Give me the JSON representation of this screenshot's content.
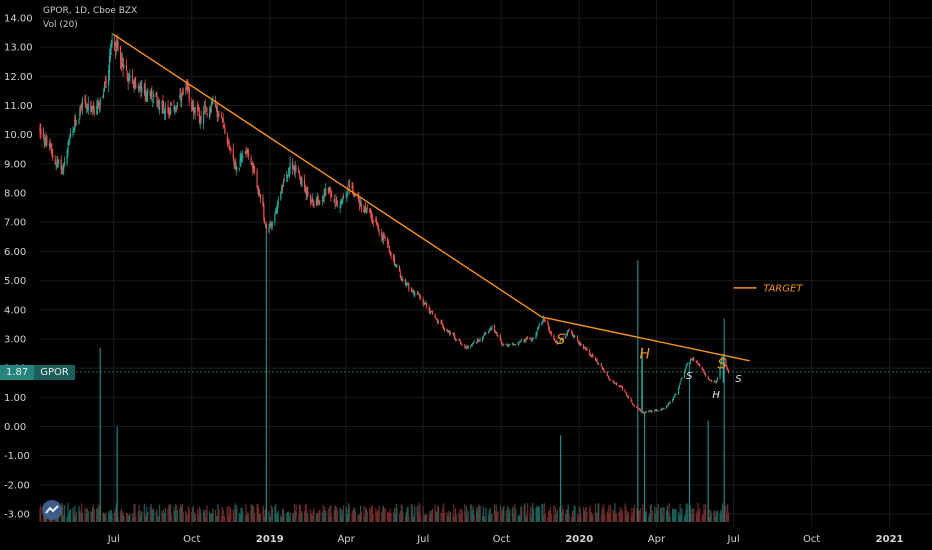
{
  "legend": {
    "title": "GPOR, 1D, Cboe BZX",
    "volume": "Vol (20)"
  },
  "price_tag": {
    "value": "1.87",
    "symbol": "GPOR"
  },
  "colors": {
    "background": "#000000",
    "grid": "#1a1a1a",
    "up": "#26a69a",
    "down": "#ef5350",
    "trendline": "#f7931a",
    "axis_text": "#d4d4d4",
    "price_line": "#26a69a"
  },
  "chart_data": {
    "type": "candlestick",
    "symbol": "GPOR",
    "interval": "1D",
    "exchange": "Cboe BZX",
    "y_ticks": [
      "14.00",
      "13.00",
      "12.00",
      "11.00",
      "10.00",
      "9.00",
      "8.00",
      "7.00",
      "6.00",
      "5.00",
      "4.00",
      "3.00",
      "2.00",
      "1.00",
      "0.00",
      "-1.00",
      "-2.00",
      "-3.00"
    ],
    "ylim": [
      -3.3,
      14.4
    ],
    "x_ticks": [
      "Jul",
      "Oct",
      "2019",
      "Apr",
      "Jul",
      "Oct",
      "2020",
      "Apr",
      "Jul",
      "Oct",
      "2021"
    ],
    "x_tick_dates": [
      "2018-07-01",
      "2018-10-01",
      "2019-01-01",
      "2019-04-01",
      "2019-07-01",
      "2019-10-01",
      "2020-01-01",
      "2020-04-01",
      "2020-07-01",
      "2020-10-01",
      "2021-01-01"
    ],
    "xlim": [
      "2018-04-05",
      "2021-02-20"
    ],
    "last_price": 1.87,
    "price_path": [
      [
        "2018-04-05",
        10.2
      ],
      [
        "2018-04-20",
        9.2
      ],
      [
        "2018-05-01",
        8.8
      ],
      [
        "2018-05-10",
        9.8
      ],
      [
        "2018-05-25",
        11.2
      ],
      [
        "2018-06-08",
        10.6
      ],
      [
        "2018-06-22",
        11.8
      ],
      [
        "2018-06-30",
        13.4
      ],
      [
        "2018-07-15",
        12.1
      ],
      [
        "2018-08-01",
        11.5
      ],
      [
        "2018-08-20",
        11.2
      ],
      [
        "2018-09-05",
        10.8
      ],
      [
        "2018-09-25",
        11.4
      ],
      [
        "2018-10-10",
        10.5
      ],
      [
        "2018-10-25",
        11.1
      ],
      [
        "2018-11-08",
        10.2
      ],
      [
        "2018-11-22",
        8.8
      ],
      [
        "2018-12-05",
        9.6
      ],
      [
        "2018-12-20",
        7.8
      ],
      [
        "2018-12-28",
        6.6
      ],
      [
        "2019-01-10",
        7.6
      ],
      [
        "2019-01-25",
        9.1
      ],
      [
        "2019-02-08",
        8.3
      ],
      [
        "2019-02-22",
        7.6
      ],
      [
        "2019-03-08",
        8.1
      ],
      [
        "2019-03-22",
        7.7
      ],
      [
        "2019-04-05",
        8.2
      ],
      [
        "2019-04-20",
        7.5
      ],
      [
        "2019-05-05",
        7.0
      ],
      [
        "2019-05-20",
        6.2
      ],
      [
        "2019-06-05",
        5.0
      ],
      [
        "2019-06-20",
        4.6
      ],
      [
        "2019-07-05",
        4.1
      ],
      [
        "2019-07-20",
        3.5
      ],
      [
        "2019-08-05",
        3.1
      ],
      [
        "2019-08-20",
        2.7
      ],
      [
        "2019-09-05",
        3.0
      ],
      [
        "2019-09-20",
        3.4
      ],
      [
        "2019-10-05",
        2.7
      ],
      [
        "2019-10-20",
        2.9
      ],
      [
        "2019-11-05",
        3.0
      ],
      [
        "2019-11-20",
        3.7
      ],
      [
        "2019-12-05",
        2.8
      ],
      [
        "2019-12-20",
        3.3
      ],
      [
        "2020-01-05",
        2.7
      ],
      [
        "2020-01-20",
        2.3
      ],
      [
        "2020-02-05",
        1.6
      ],
      [
        "2020-02-20",
        1.3
      ],
      [
        "2020-03-05",
        0.7
      ],
      [
        "2020-03-18",
        0.45
      ],
      [
        "2020-03-28",
        0.55
      ],
      [
        "2020-04-10",
        0.6
      ],
      [
        "2020-04-25",
        1.2
      ],
      [
        "2020-05-10",
        2.4
      ],
      [
        "2020-05-20",
        2.1
      ],
      [
        "2020-06-01",
        1.6
      ],
      [
        "2020-06-10",
        1.5
      ],
      [
        "2020-06-17",
        2.4
      ],
      [
        "2020-06-25",
        1.8
      ]
    ],
    "volume_spikes": [
      [
        "2018-06-15",
        6.0
      ],
      [
        "2018-07-05",
        3.3
      ],
      [
        "2018-12-28",
        10.0
      ],
      [
        "2019-12-10",
        3.0
      ],
      [
        "2020-03-10",
        9.0
      ],
      [
        "2020-03-18",
        3.8
      ],
      [
        "2020-05-10",
        5.5
      ],
      [
        "2020-06-01",
        3.5
      ],
      [
        "2020-06-20",
        7.0
      ]
    ],
    "trendlines": [
      {
        "from": [
          "2018-06-30",
          13.45
        ],
        "to": [
          "2019-11-18",
          3.75
        ]
      },
      {
        "from": [
          "2019-11-18",
          3.75
        ],
        "to": [
          "2020-07-20",
          2.25
        ]
      },
      {
        "from": [
          "2020-07-01",
          4.75
        ],
        "to": [
          "2020-07-28",
          4.75
        ]
      }
    ],
    "spike_markers": [
      {
        "date": "2020-03-15",
        "from": 0.45,
        "to": 2.7
      },
      {
        "date": "2020-06-19",
        "from": 1.5,
        "to": 2.5
      }
    ],
    "annotations": [
      {
        "text": "TARGET",
        "date": "2020-08-05",
        "y": 4.75
      },
      {
        "text": "S",
        "date": "2019-12-05",
        "y": 3.0,
        "size": "large"
      },
      {
        "text": "H",
        "date": "2020-03-12",
        "y": 2.5,
        "size": "large"
      },
      {
        "text": "S",
        "date": "2020-06-12",
        "y": 2.15,
        "size": "large"
      },
      {
        "text": "S",
        "date": "2020-05-06",
        "y": 1.75,
        "size": "small"
      },
      {
        "text": "H",
        "date": "2020-06-06",
        "y": 1.1,
        "size": "small"
      },
      {
        "text": "S",
        "date": "2020-07-03",
        "y": 1.65,
        "size": "small"
      }
    ]
  }
}
